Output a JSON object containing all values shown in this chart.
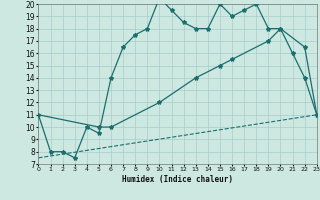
{
  "xlabel": "Humidex (Indice chaleur)",
  "xlim": [
    0,
    23
  ],
  "ylim": [
    7,
    20
  ],
  "bg_color": "#cce8e0",
  "grid_color": "#aacccc",
  "line_color": "#1a6e6e",
  "line1_x": [
    0,
    1,
    2,
    3,
    4,
    5,
    6,
    7,
    8,
    9,
    10,
    11,
    12,
    13,
    14,
    15,
    16,
    17,
    18,
    19,
    20,
    21,
    22,
    23
  ],
  "line1_y": [
    11,
    8,
    8,
    7.5,
    10,
    9.5,
    14,
    16.5,
    17.5,
    18,
    20.5,
    19.5,
    18.5,
    18,
    18,
    20,
    19,
    19.5,
    20,
    18,
    18,
    16,
    14,
    11
  ],
  "line2_x": [
    0,
    5,
    6,
    10,
    13,
    15,
    16,
    19,
    20,
    22,
    23
  ],
  "line2_y": [
    11,
    10,
    10,
    12,
    14,
    15,
    15.5,
    17,
    18,
    16.5,
    11
  ],
  "line3_x": [
    0,
    23
  ],
  "line3_y": [
    7.5,
    11
  ]
}
